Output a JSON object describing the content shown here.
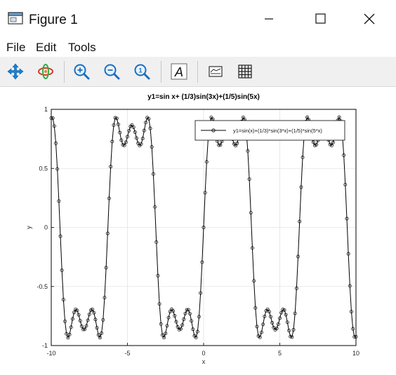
{
  "window": {
    "title": "Figure 1",
    "icon": "figure-window-icon"
  },
  "menu": {
    "file": "File",
    "edit": "Edit",
    "tools": "Tools"
  },
  "toolbar": {
    "icons": [
      "pan-icon",
      "rotate-icon",
      "zoom-in-icon",
      "zoom-out-icon",
      "zoom-reset-icon",
      "text-annotation-icon",
      "legend-toggle-icon",
      "grid-toggle-icon"
    ],
    "accent": "#1a7fd4"
  },
  "chart_data": {
    "type": "line",
    "title": "y1=sin x+ (1/3)sin(3x)+(1/5)sin(5x)",
    "xlabel": "x",
    "ylabel": "y",
    "xlim": [
      -10,
      10
    ],
    "ylim": [
      -1,
      1
    ],
    "xticks": [
      -10,
      -5,
      0,
      5,
      10
    ],
    "yticks": [
      -1,
      -0.5,
      0,
      0.5,
      1
    ],
    "xtick_labels": [
      "-10",
      "-5",
      "0",
      "5",
      "10"
    ],
    "ytick_labels": [
      "-1",
      "-0.5",
      "0",
      "0.5",
      "1"
    ],
    "grid": true,
    "legend_placement": "top-right",
    "series": [
      {
        "name": "y1=sin(x)+(1/3)*sin(3*x)+(1/5)*sin(5*x)",
        "color": "#000000",
        "marker": "circle",
        "x_start": -10,
        "x_end": 10,
        "x_step": 0.1,
        "expression": "sin(x)+(1/3)*sin(3*x)+(1/5)*sin(5*x)"
      }
    ]
  }
}
